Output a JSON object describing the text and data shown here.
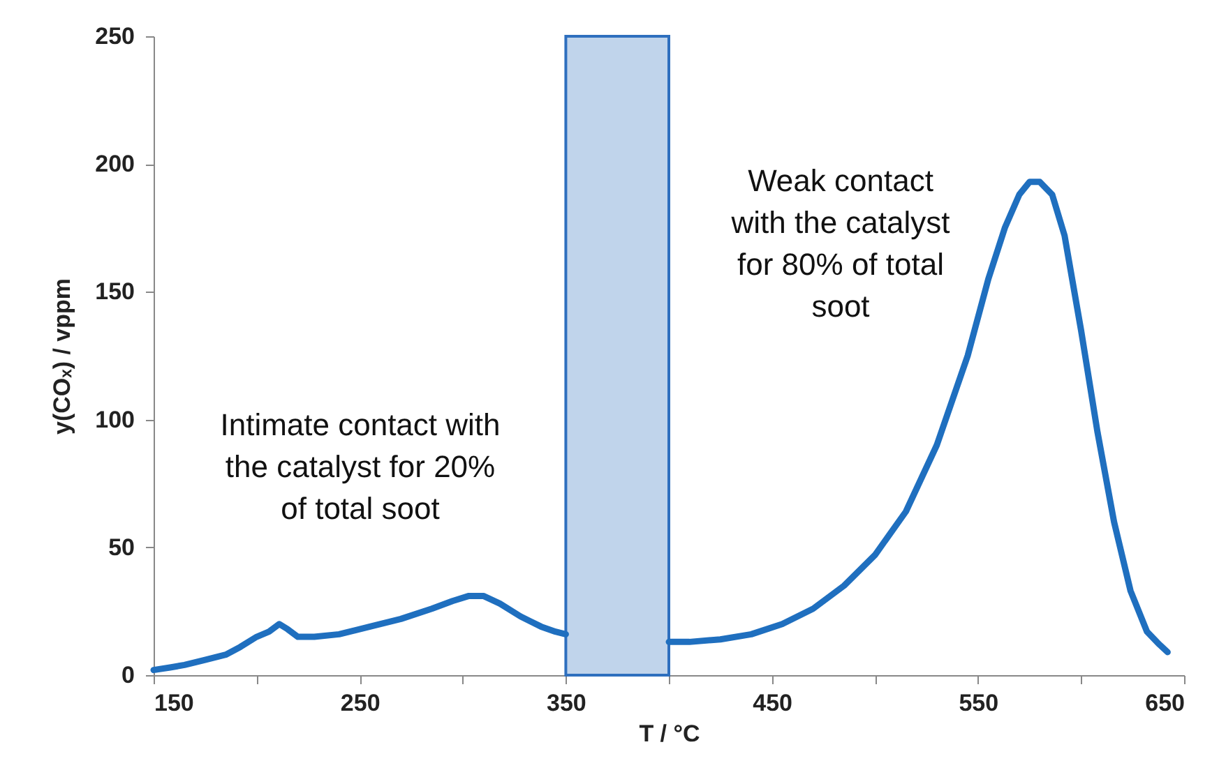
{
  "chart_data": {
    "type": "line",
    "xlabel": "T / °C",
    "ylabel": "y(COₓ) / vppm",
    "x": [
      150,
      158,
      165,
      175,
      185,
      192,
      200,
      206,
      211,
      215,
      220,
      228,
      240,
      255,
      270,
      285,
      295,
      303,
      310,
      318,
      328,
      338,
      345,
      350,
      375,
      400,
      410,
      425,
      440,
      455,
      470,
      485,
      500,
      515,
      530,
      545,
      555,
      563,
      570,
      575,
      580,
      586,
      592,
      600,
      608,
      616,
      624,
      632,
      638,
      642
    ],
    "series": [
      {
        "color": "#1f6fbf",
        "values": [
          2,
          3,
          4,
          6,
          8,
          11,
          15,
          17,
          20,
          18,
          15,
          15,
          16,
          19,
          22,
          26,
          29,
          31,
          31,
          28,
          23,
          19,
          17,
          16,
          null,
          13,
          13,
          14,
          16,
          20,
          26,
          35,
          47,
          64,
          90,
          125,
          155,
          175,
          188,
          193,
          193,
          188,
          172,
          135,
          95,
          60,
          33,
          17,
          12,
          9
        ]
      }
    ],
    "xlim": [
      150,
      650
    ],
    "xticks": [
      150,
      {
        "value": 200,
        "label": null
      },
      250,
      {
        "value": 300,
        "label": null
      },
      350,
      {
        "value": 400,
        "label": null
      },
      450,
      {
        "value": 500,
        "label": null
      },
      550,
      {
        "value": 600,
        "label": null
      },
      650
    ],
    "ylim": [
      0,
      250
    ],
    "yticks": [
      0,
      50,
      100,
      150,
      200,
      250
    ],
    "grid": false,
    "marker": "none",
    "line_style": "solid",
    "bands": [
      {
        "axis": "x",
        "from": 350,
        "to": 400,
        "color": "#2e6fbe"
      }
    ],
    "annotations": [
      "Intimate contact with\nthe catalyst for 20%\nof total soot",
      "Weak contact\nwith the catalyst\nfor 80% of total\nsoot"
    ]
  }
}
